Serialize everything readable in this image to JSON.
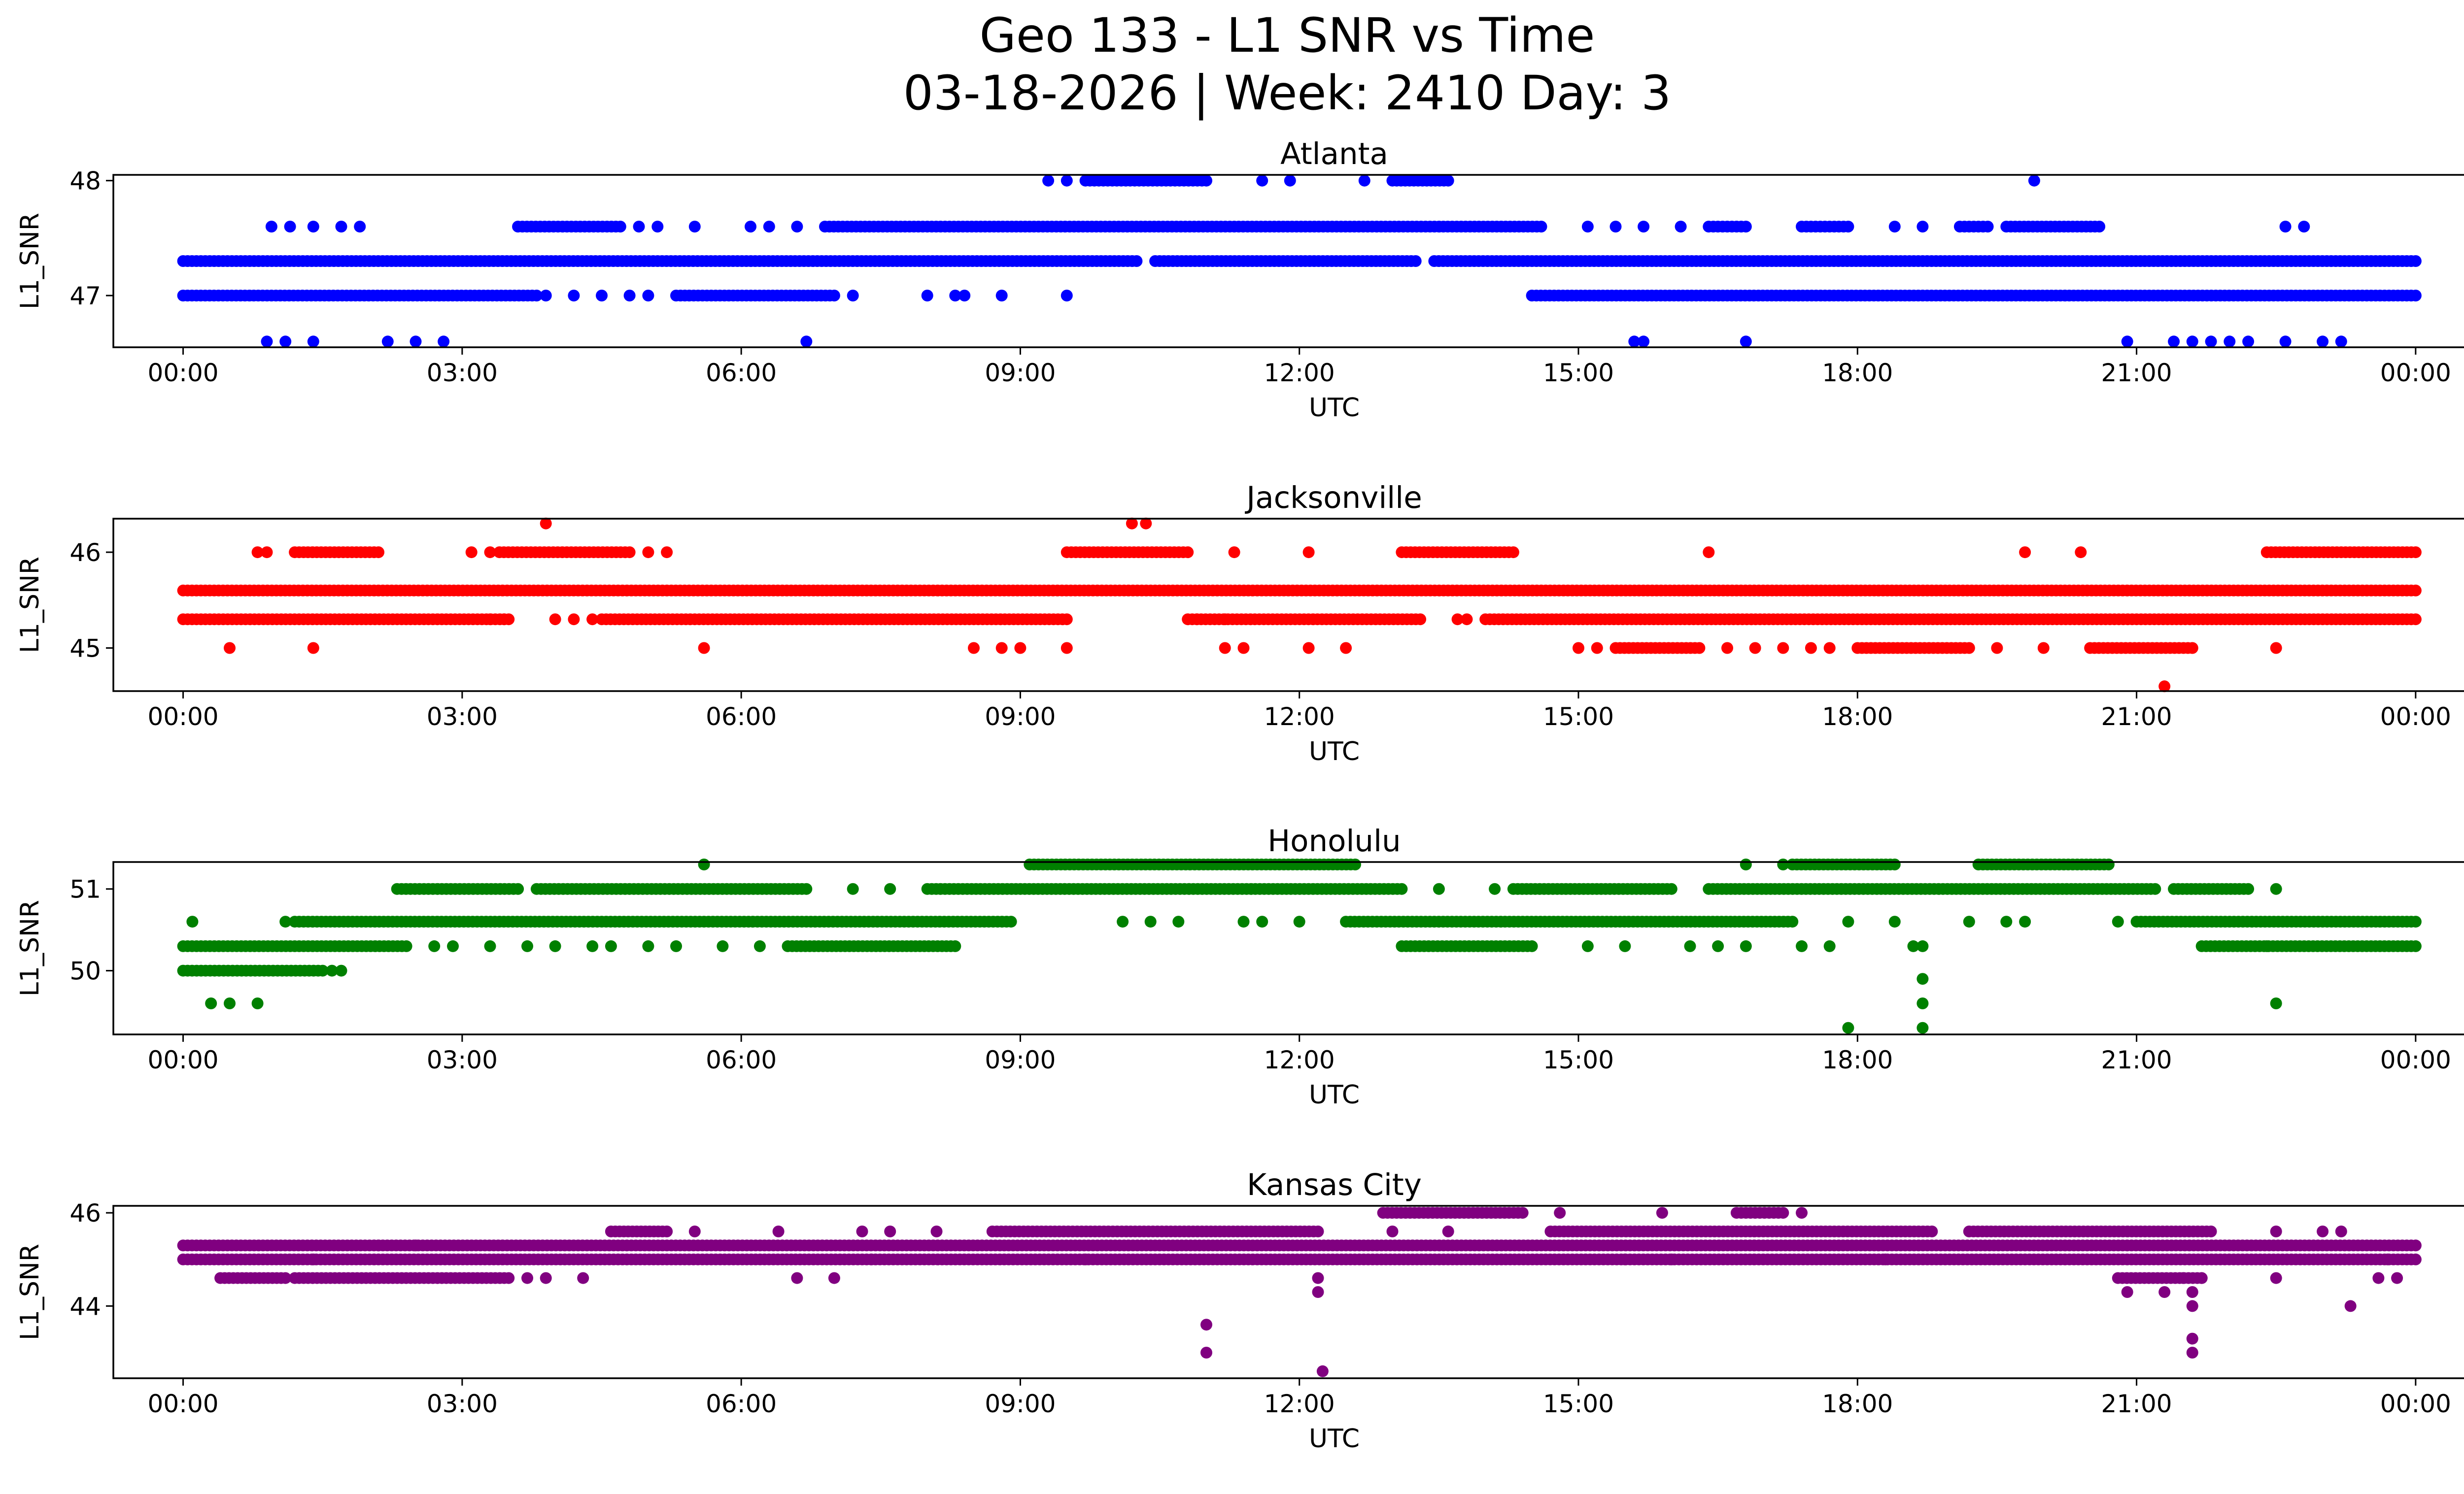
{
  "figure": {
    "title_line1": "Geo 133 - L1 SNR vs Time",
    "title_line2": "03-18-2026 | Week: 2410 Day: 3"
  },
  "chart_data": [
    {
      "type": "scatter",
      "title": "Atlanta",
      "xlabel": "UTC",
      "ylabel": "L1_SNR",
      "color": "#0000ff",
      "xlim_hours": [
        -0.75,
        25.5
      ],
      "ylim": [
        46.55,
        48.05
      ],
      "yticks": [
        47,
        48
      ],
      "xtick_labels": [
        "00:00",
        "03:00",
        "06:00",
        "09:00",
        "12:00",
        "15:00",
        "18:00",
        "21:00",
        "00:00"
      ],
      "dense_bands": [
        {
          "y": 47.3,
          "segments": [
            [
              0,
              10.25
            ],
            [
              10.45,
              13.25
            ],
            [
              13.45,
              24
            ]
          ]
        },
        {
          "y": 47.0,
          "segments": [
            [
              0,
              3.8
            ],
            [
              5.3,
              7.0
            ],
            [
              14.5,
              24
            ]
          ]
        },
        {
          "y": 47.6,
          "segments": [
            [
              3.6,
              4.7
            ],
            [
              6.9,
              14.6
            ],
            [
              16.4,
              16.8
            ],
            [
              17.4,
              17.9
            ],
            [
              19.1,
              19.4
            ],
            [
              19.6,
              20.6
            ]
          ]
        },
        {
          "y": 48.0,
          "segments": [
            [
              9.7,
              11.0
            ],
            [
              13.0,
              13.6
            ]
          ]
        }
      ],
      "points": [
        [
          0.9,
          46.6
        ],
        [
          1.1,
          46.6
        ],
        [
          1.4,
          46.6
        ],
        [
          2.2,
          46.6
        ],
        [
          2.5,
          46.6
        ],
        [
          2.8,
          46.6
        ],
        [
          6.7,
          46.6
        ],
        [
          15.6,
          46.6
        ],
        [
          15.7,
          46.6
        ],
        [
          16.8,
          46.6
        ],
        [
          20.9,
          46.6
        ],
        [
          21.4,
          46.6
        ],
        [
          21.6,
          46.6
        ],
        [
          21.8,
          46.6
        ],
        [
          22.0,
          46.6
        ],
        [
          22.2,
          46.6
        ],
        [
          22.6,
          46.6
        ],
        [
          23.0,
          46.6
        ],
        [
          23.2,
          46.6
        ],
        [
          3.9,
          47.0
        ],
        [
          4.2,
          47.0
        ],
        [
          4.5,
          47.0
        ],
        [
          4.8,
          47.0
        ],
        [
          5.0,
          47.0
        ],
        [
          7.2,
          47.0
        ],
        [
          8.0,
          47.0
        ],
        [
          8.3,
          47.0
        ],
        [
          8.4,
          47.0
        ],
        [
          8.8,
          47.0
        ],
        [
          9.5,
          47.0
        ],
        [
          0.95,
          47.6
        ],
        [
          1.15,
          47.6
        ],
        [
          1.4,
          47.6
        ],
        [
          1.7,
          47.6
        ],
        [
          1.9,
          47.6
        ],
        [
          4.9,
          47.6
        ],
        [
          5.1,
          47.6
        ],
        [
          5.5,
          47.6
        ],
        [
          6.1,
          47.6
        ],
        [
          6.3,
          47.6
        ],
        [
          6.6,
          47.6
        ],
        [
          15.1,
          47.6
        ],
        [
          15.4,
          47.6
        ],
        [
          15.7,
          47.6
        ],
        [
          16.1,
          47.6
        ],
        [
          18.4,
          47.6
        ],
        [
          18.7,
          47.6
        ],
        [
          22.6,
          47.6
        ],
        [
          22.8,
          47.6
        ],
        [
          9.3,
          48.0
        ],
        [
          9.5,
          48.0
        ],
        [
          11.6,
          48.0
        ],
        [
          11.9,
          48.0
        ],
        [
          12.7,
          48.0
        ],
        [
          19.9,
          48.0
        ]
      ]
    },
    {
      "type": "scatter",
      "title": "Jacksonville",
      "xlabel": "UTC",
      "ylabel": "L1_SNR",
      "color": "#ff0000",
      "xlim_hours": [
        -0.75,
        25.5
      ],
      "ylim": [
        44.55,
        46.35
      ],
      "yticks": [
        45,
        46
      ],
      "xtick_labels": [
        "00:00",
        "03:00",
        "06:00",
        "09:00",
        "12:00",
        "15:00",
        "18:00",
        "21:00",
        "00:00"
      ],
      "dense_bands": [
        {
          "y": 45.6,
          "segments": [
            [
              0,
              24
            ]
          ]
        },
        {
          "y": 45.3,
          "segments": [
            [
              0,
              3.5
            ],
            [
              4.5,
              9.5
            ],
            [
              10.8,
              13.3
            ],
            [
              14.0,
              24
            ]
          ]
        },
        {
          "y": 46.0,
          "segments": [
            [
              1.2,
              2.1
            ],
            [
              3.4,
              4.8
            ],
            [
              9.5,
              10.8
            ],
            [
              13.1,
              14.3
            ],
            [
              22.4,
              24
            ]
          ]
        },
        {
          "y": 45.0,
          "segments": [
            [
              15.4,
              16.3
            ],
            [
              18.0,
              19.2
            ],
            [
              20.5,
              21.6
            ]
          ]
        }
      ],
      "points": [
        [
          0.5,
          45.0
        ],
        [
          1.4,
          45.0
        ],
        [
          5.6,
          45.0
        ],
        [
          8.5,
          45.0
        ],
        [
          8.8,
          45.0
        ],
        [
          9.0,
          45.0
        ],
        [
          9.5,
          45.0
        ],
        [
          11.2,
          45.0
        ],
        [
          11.4,
          45.0
        ],
        [
          12.1,
          45.0
        ],
        [
          12.5,
          45.0
        ],
        [
          15.0,
          45.0
        ],
        [
          15.2,
          45.0
        ],
        [
          16.6,
          45.0
        ],
        [
          16.9,
          45.0
        ],
        [
          17.2,
          45.0
        ],
        [
          17.5,
          45.0
        ],
        [
          17.7,
          45.0
        ],
        [
          19.5,
          45.0
        ],
        [
          20.0,
          45.0
        ],
        [
          22.5,
          45.0
        ],
        [
          21.3,
          44.6
        ],
        [
          0.8,
          46.0
        ],
        [
          0.9,
          46.0
        ],
        [
          3.1,
          46.0
        ],
        [
          3.3,
          46.0
        ],
        [
          5.0,
          46.0
        ],
        [
          5.2,
          46.0
        ],
        [
          11.3,
          46.0
        ],
        [
          12.1,
          46.0
        ],
        [
          16.4,
          46.0
        ],
        [
          19.8,
          46.0
        ],
        [
          20.4,
          46.0
        ],
        [
          3.9,
          46.3
        ],
        [
          10.2,
          46.3
        ],
        [
          10.35,
          46.3
        ],
        [
          3.3,
          45.3
        ],
        [
          3.45,
          45.3
        ],
        [
          4.0,
          45.3
        ],
        [
          4.2,
          45.3
        ],
        [
          4.4,
          45.3
        ],
        [
          13.7,
          45.3
        ],
        [
          13.8,
          45.3
        ],
        [
          10.9,
          45.3
        ],
        [
          11.2,
          45.3
        ]
      ]
    },
    {
      "type": "scatter",
      "title": "Honolulu",
      "xlabel": "UTC",
      "ylabel": "L1_SNR",
      "color": "#008000",
      "xlim_hours": [
        -0.75,
        25.5
      ],
      "ylim": [
        49.22,
        51.33
      ],
      "yticks": [
        50,
        51
      ],
      "xtick_labels": [
        "00:00",
        "03:00",
        "06:00",
        "09:00",
        "12:00",
        "15:00",
        "18:00",
        "21:00",
        "00:00"
      ],
      "dense_bands": [
        {
          "y": 50.0,
          "segments": [
            [
              0,
              1.5
            ]
          ]
        },
        {
          "y": 50.3,
          "segments": [
            [
              0,
              2.4
            ],
            [
              6.5,
              8.3
            ],
            [
              13.1,
              14.5
            ],
            [
              21.7,
              24
            ]
          ]
        },
        {
          "y": 50.6,
          "segments": [
            [
              1.2,
              8.9
            ],
            [
              12.5,
              17.3
            ],
            [
              21.0,
              24
            ]
          ]
        },
        {
          "y": 51.0,
          "segments": [
            [
              2.3,
              3.6
            ],
            [
              3.8,
              6.7
            ],
            [
              8.0,
              13.1
            ],
            [
              14.3,
              16.0
            ],
            [
              16.4,
              21.2
            ],
            [
              21.4,
              22.2
            ]
          ]
        },
        {
          "y": 51.3,
          "segments": [
            [
              9.1,
              12.6
            ],
            [
              17.3,
              18.4
            ],
            [
              19.3,
              20.7
            ]
          ]
        }
      ],
      "points": [
        [
          0.3,
          49.6
        ],
        [
          0.5,
          49.6
        ],
        [
          0.8,
          49.6
        ],
        [
          1.6,
          50.0
        ],
        [
          1.7,
          50.0
        ],
        [
          0.1,
          50.6
        ],
        [
          1.1,
          50.6
        ],
        [
          2.7,
          50.3
        ],
        [
          2.9,
          50.3
        ],
        [
          3.3,
          50.3
        ],
        [
          3.7,
          50.3
        ],
        [
          4.0,
          50.3
        ],
        [
          4.4,
          50.3
        ],
        [
          4.6,
          50.3
        ],
        [
          5.0,
          50.3
        ],
        [
          5.3,
          50.3
        ],
        [
          5.8,
          50.3
        ],
        [
          6.2,
          50.3
        ],
        [
          5.6,
          51.3
        ],
        [
          7.2,
          51.0
        ],
        [
          7.6,
          51.0
        ],
        [
          13.5,
          51.0
        ],
        [
          14.1,
          51.0
        ],
        [
          22.5,
          51.0
        ],
        [
          10.1,
          50.6
        ],
        [
          10.4,
          50.6
        ],
        [
          10.7,
          50.6
        ],
        [
          11.4,
          50.6
        ],
        [
          11.6,
          50.6
        ],
        [
          12.0,
          50.6
        ],
        [
          17.9,
          50.6
        ],
        [
          18.4,
          50.6
        ],
        [
          19.2,
          50.6
        ],
        [
          19.6,
          50.6
        ],
        [
          19.8,
          50.6
        ],
        [
          20.8,
          50.6
        ],
        [
          15.1,
          50.3
        ],
        [
          15.5,
          50.3
        ],
        [
          16.2,
          50.3
        ],
        [
          16.5,
          50.3
        ],
        [
          16.8,
          50.3
        ],
        [
          17.4,
          50.3
        ],
        [
          17.7,
          50.3
        ],
        [
          18.6,
          50.3
        ],
        [
          22.4,
          50.3
        ],
        [
          17.9,
          49.3
        ],
        [
          18.7,
          49.3
        ],
        [
          18.7,
          49.6
        ],
        [
          18.7,
          49.9
        ],
        [
          18.7,
          50.3
        ],
        [
          22.5,
          49.6
        ],
        [
          16.8,
          51.3
        ],
        [
          17.2,
          51.3
        ]
      ]
    },
    {
      "type": "scatter",
      "title": "Kansas City",
      "xlabel": "UTC",
      "ylabel": "L1_SNR",
      "color": "#800080",
      "xlim_hours": [
        -0.75,
        25.5
      ],
      "ylim": [
        42.45,
        46.15
      ],
      "yticks": [
        44,
        46
      ],
      "xtick_labels": [
        "00:00",
        "03:00",
        "06:00",
        "09:00",
        "12:00",
        "15:00",
        "18:00",
        "21:00",
        "00:00"
      ],
      "dense_bands": [
        {
          "y": 45.3,
          "segments": [
            [
              0,
              24
            ]
          ]
        },
        {
          "y": 45.0,
          "segments": [
            [
              0,
              24
            ]
          ]
        },
        {
          "y": 44.6,
          "segments": [
            [
              0.4,
              1.1
            ],
            [
              1.2,
              3.5
            ],
            [
              20.8,
              21.7
            ]
          ]
        },
        {
          "y": 45.6,
          "segments": [
            [
              4.6,
              5.2
            ],
            [
              8.7,
              12.2
            ],
            [
              14.7,
              18.8
            ],
            [
              19.2,
              21.8
            ]
          ]
        },
        {
          "y": 46.0,
          "segments": [
            [
              12.9,
              14.4
            ],
            [
              16.7,
              17.2
            ]
          ]
        }
      ],
      "points": [
        [
          3.7,
          44.6
        ],
        [
          3.9,
          44.6
        ],
        [
          4.3,
          44.6
        ],
        [
          6.6,
          44.6
        ],
        [
          7.0,
          44.6
        ],
        [
          12.2,
          44.6
        ],
        [
          21.5,
          44.6
        ],
        [
          21.7,
          44.6
        ],
        [
          22.5,
          44.6
        ],
        [
          23.6,
          44.6
        ],
        [
          23.8,
          44.6
        ],
        [
          11.0,
          43.6
        ],
        [
          11.0,
          43.0
        ],
        [
          12.2,
          44.3
        ],
        [
          12.25,
          42.6
        ],
        [
          20.9,
          44.3
        ],
        [
          21.3,
          44.3
        ],
        [
          21.6,
          44.3
        ],
        [
          21.6,
          44.0
        ],
        [
          21.6,
          43.3
        ],
        [
          21.6,
          43.0
        ],
        [
          23.3,
          44.0
        ],
        [
          5.5,
          45.6
        ],
        [
          6.4,
          45.6
        ],
        [
          7.3,
          45.6
        ],
        [
          7.6,
          45.6
        ],
        [
          8.1,
          45.6
        ],
        [
          13.0,
          45.6
        ],
        [
          13.6,
          45.6
        ],
        [
          22.5,
          45.6
        ],
        [
          23.0,
          45.6
        ],
        [
          23.2,
          45.6
        ],
        [
          15.9,
          46.0
        ],
        [
          17.4,
          46.0
        ],
        [
          14.8,
          46.0
        ],
        [
          1.4,
          45.0
        ],
        [
          2.1,
          45.3
        ],
        [
          2.5,
          45.3
        ],
        [
          7.4,
          45.0
        ],
        [
          9.7,
          45.0
        ],
        [
          15.5,
          45.0
        ],
        [
          16.0,
          45.0
        ],
        [
          18.3,
          45.0
        ],
        [
          23.7,
          45.0
        ]
      ]
    }
  ]
}
